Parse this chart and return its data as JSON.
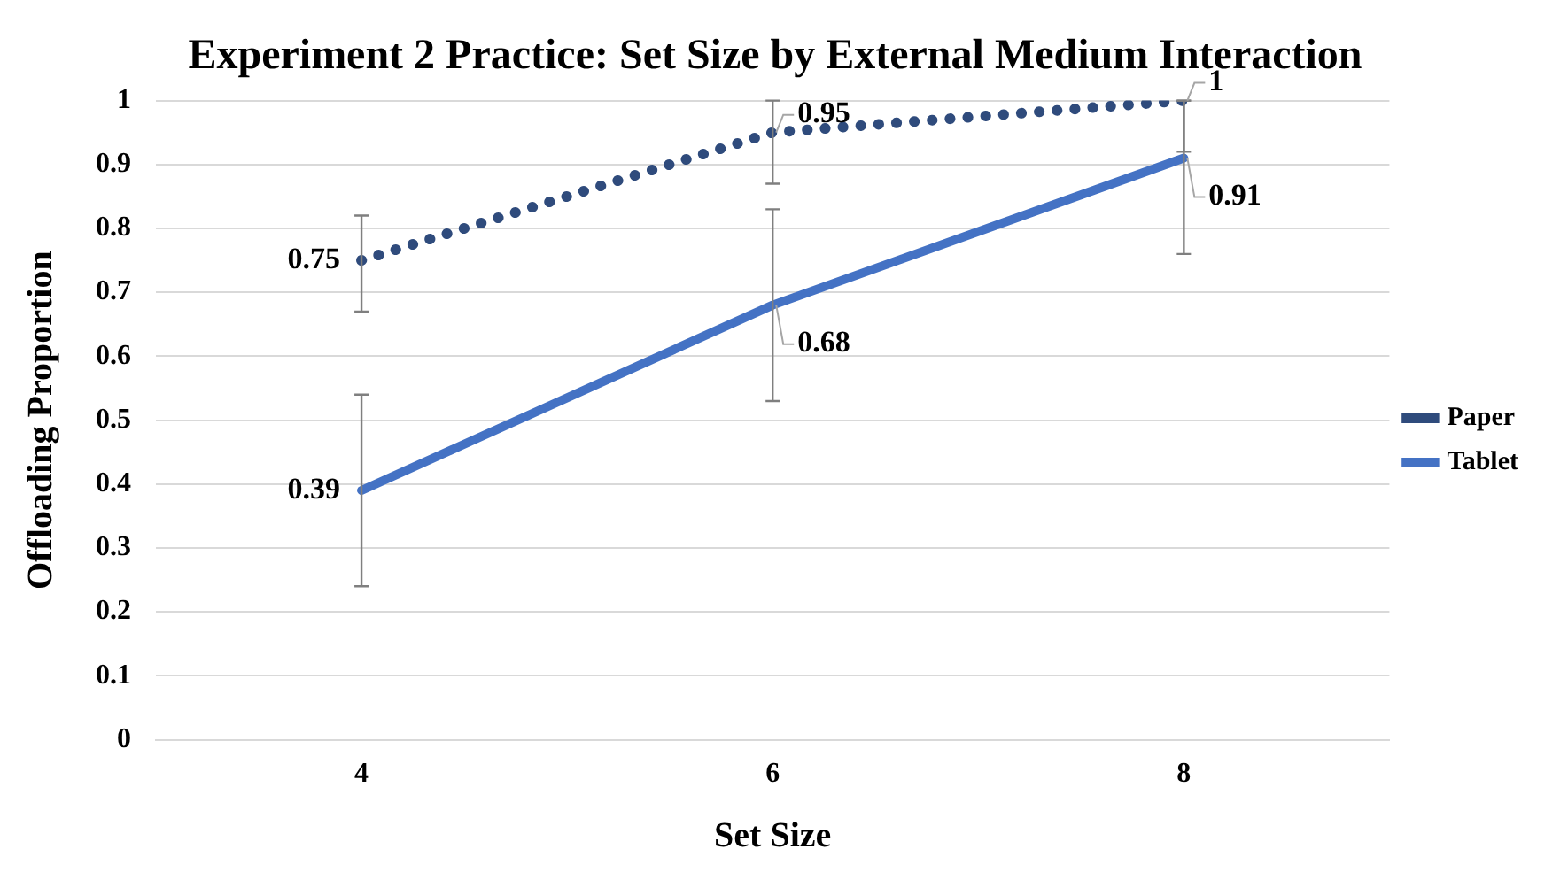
{
  "chart_data": {
    "type": "line",
    "title": "Experiment 2 Practice: Set Size by External Medium Interaction",
    "xlabel": "Set Size",
    "ylabel": "Offloading Proportion",
    "categories": [
      "4",
      "6",
      "8"
    ],
    "series": [
      {
        "name": "Paper",
        "color": "#2f4b7c",
        "values": [
          0.75,
          0.95,
          1
        ],
        "line_style": "dotted",
        "errors": [
          [
            0.67,
            0.82
          ],
          [
            0.87,
            1
          ],
          [
            0.92,
            1
          ]
        ]
      },
      {
        "name": "Tablet",
        "color": "#4472c4",
        "values": [
          0.39,
          0.68,
          0.91
        ],
        "line_style": "solid",
        "errors": [
          [
            0.24,
            0.54
          ],
          [
            0.53,
            0.83
          ],
          [
            0.76,
            1
          ]
        ]
      }
    ],
    "ylim": [
      0,
      1
    ],
    "yticks": [
      0,
      0.1,
      0.2,
      0.3,
      0.4,
      0.5,
      0.6,
      0.7,
      0.8,
      0.9,
      1
    ],
    "grid": "y",
    "legend": "right",
    "data_labels": true,
    "marker": "none"
  }
}
